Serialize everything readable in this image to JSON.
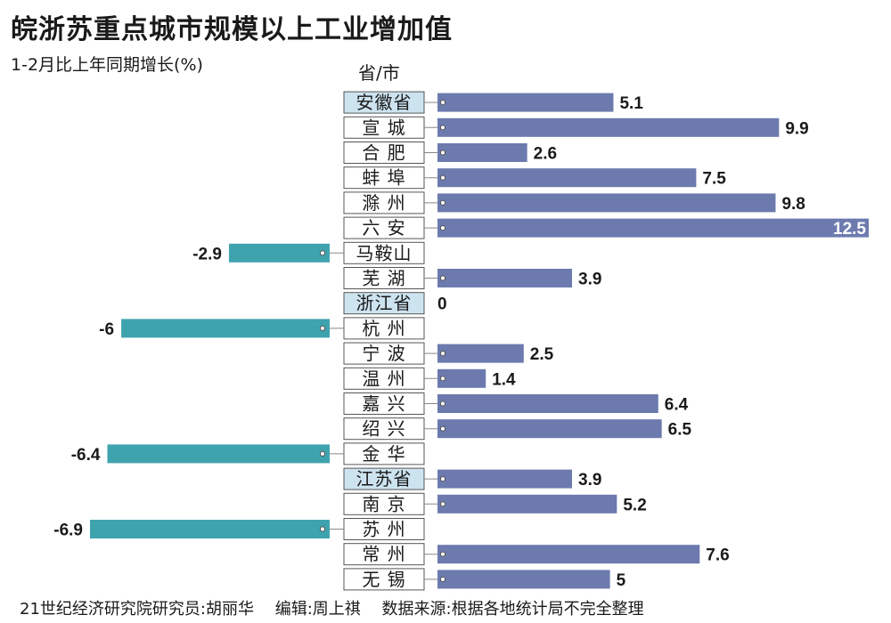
{
  "title": "皖浙苏重点城市规模以上工业增加值",
  "subtitle": "1-2月比上年同期增长(%)",
  "column_header": "省/市",
  "footer": {
    "researcher": "21世纪经济研究院研究员:胡丽华",
    "editor": "编辑:周上祺",
    "source": "数据来源:根据各地统计局不完全整理"
  },
  "colors": {
    "positive_bar": "#6c7aae",
    "negative_bar": "#3fa3ae",
    "province_label_bg": "#cde3f0",
    "label_border": "#555555"
  },
  "chart_data": {
    "type": "bar",
    "orientation": "horizontal",
    "title": "皖浙苏重点城市规模以上工业增加值",
    "ylabel": "1-2月比上年同期增长(%)",
    "xlabel": "",
    "xlim": [
      -7,
      12.5
    ],
    "categories": [
      "安徽省",
      "宣 城",
      "合 肥",
      "蚌 埠",
      "滁 州",
      "六 安",
      "马鞍山",
      "芜 湖",
      "浙江省",
      "杭 州",
      "宁 波",
      "温 州",
      "嘉 兴",
      "绍 兴",
      "金 华",
      "江苏省",
      "南 京",
      "苏 州",
      "常 州",
      "无 锡"
    ],
    "values": [
      5.1,
      9.9,
      2.6,
      7.5,
      9.8,
      12.5,
      -2.9,
      3.9,
      0,
      -6,
      2.5,
      1.4,
      6.4,
      6.5,
      -6.4,
      3.9,
      5.2,
      -6.9,
      7.6,
      5
    ],
    "value_labels": [
      "5.1",
      "9.9",
      "2.6",
      "7.5",
      "9.8",
      "12.5",
      "-2.9",
      "3.9",
      "0",
      "-6",
      "2.5",
      "1.4",
      "6.4",
      "6.5",
      "-6.4",
      "3.9",
      "5.2",
      "-6.9",
      "7.6",
      "5"
    ],
    "is_province": [
      true,
      false,
      false,
      false,
      false,
      false,
      false,
      false,
      true,
      false,
      false,
      false,
      false,
      false,
      false,
      true,
      false,
      false,
      false,
      false
    ]
  }
}
